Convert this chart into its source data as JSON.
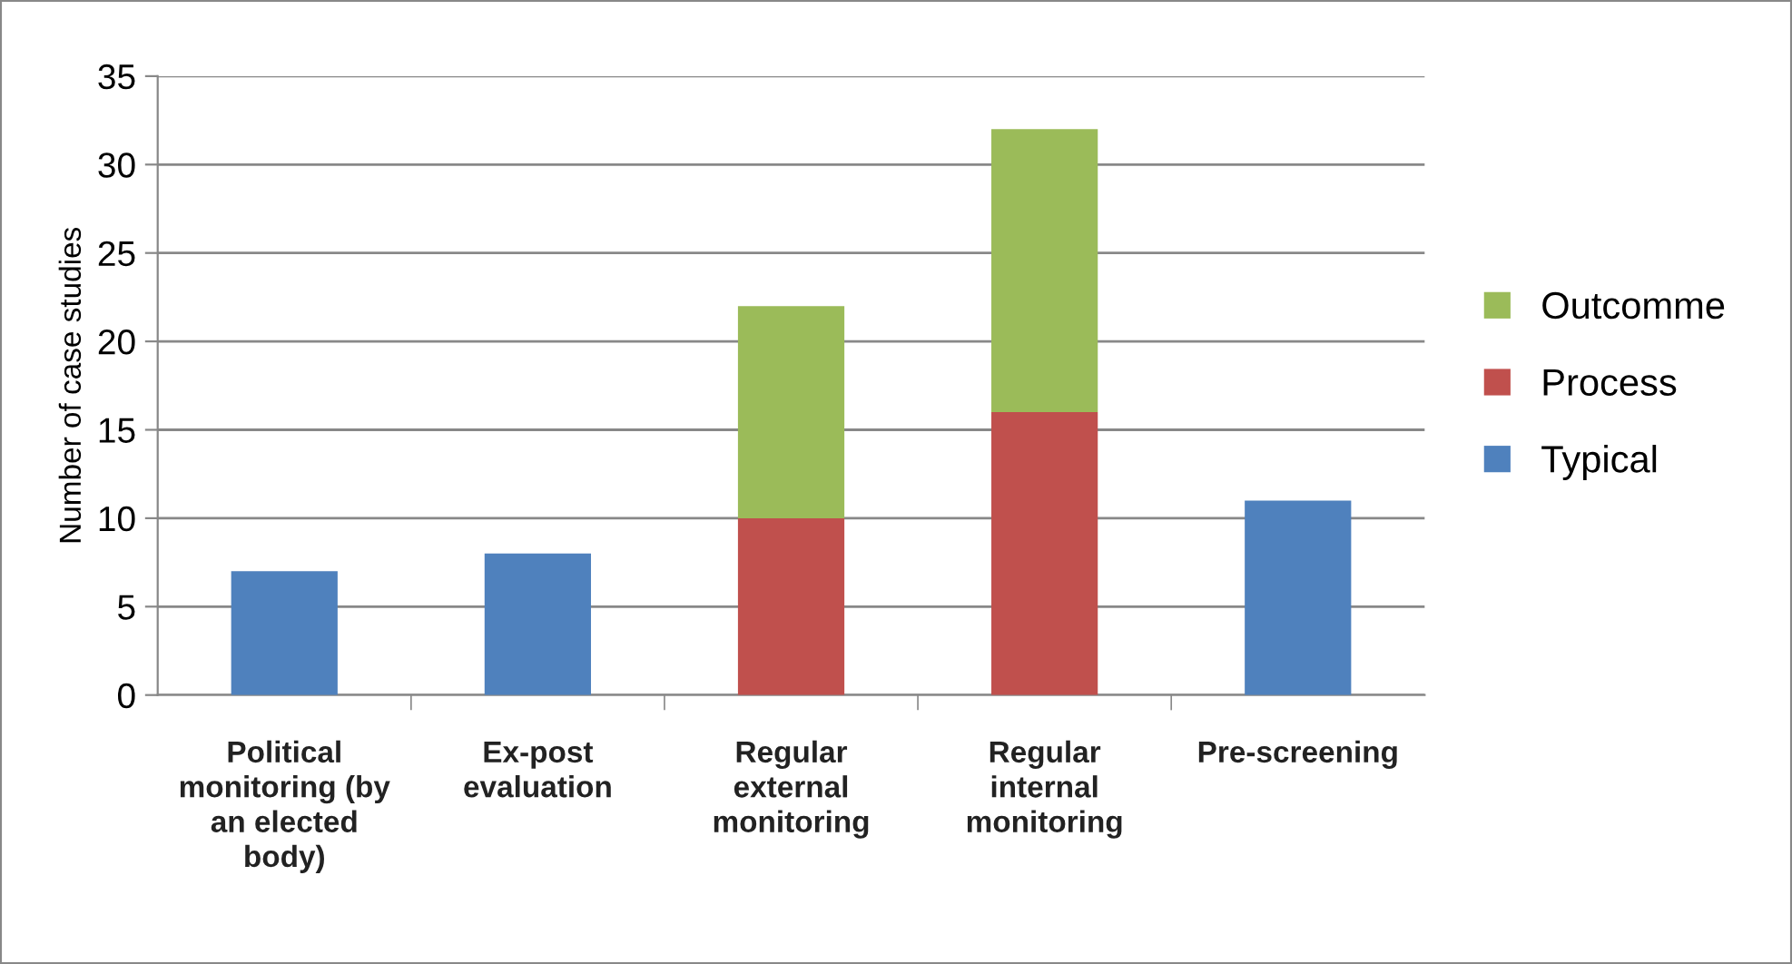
{
  "chart_data": {
    "type": "bar",
    "stacked": true,
    "ylabel": "Number of case studies",
    "categories": [
      "Political monitoring (by an elected body)",
      "Ex-post evaluation",
      "Regular external monitoring",
      "Regular internal monitoring",
      "Pre-screening"
    ],
    "series": [
      {
        "name": "Typical",
        "color": "#4f81bd",
        "values": [
          7,
          8,
          null,
          null,
          11
        ]
      },
      {
        "name": "Process",
        "color": "#c0504d",
        "values": [
          null,
          null,
          10,
          16,
          null
        ]
      },
      {
        "name": "Outcomme",
        "color": "#9bbb59",
        "values": [
          null,
          null,
          12,
          16,
          null
        ]
      }
    ],
    "ylim": [
      0,
      35
    ],
    "yticks": [
      0,
      5,
      10,
      15,
      20,
      25,
      30,
      35
    ],
    "grid": "y",
    "legend": "right"
  }
}
